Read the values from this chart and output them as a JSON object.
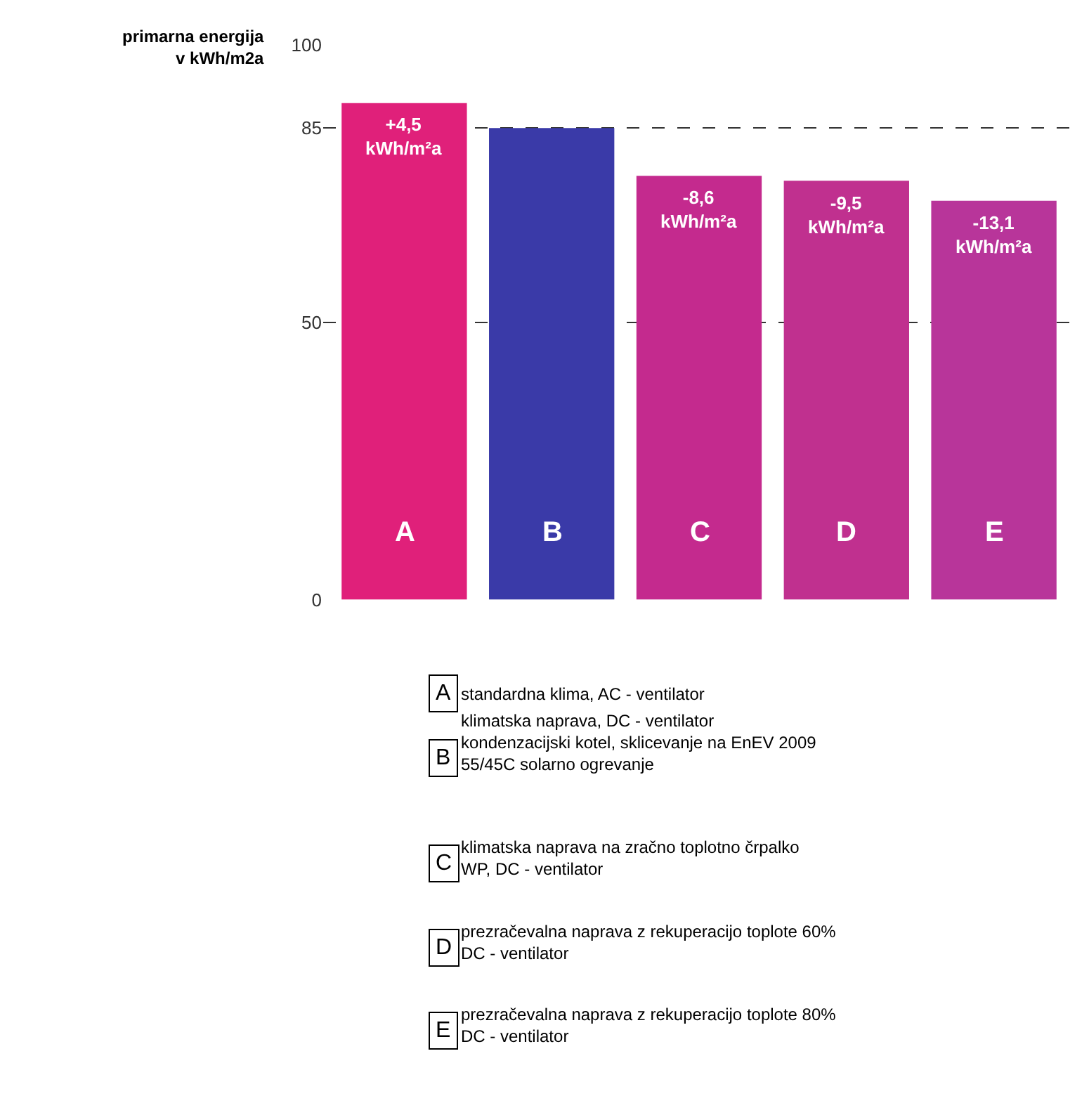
{
  "chart_data": {
    "type": "bar",
    "ylabel": "primarna energija\nv kWh/m2a",
    "categories": [
      "A",
      "B",
      "C",
      "D",
      "E"
    ],
    "values": [
      89.5,
      85,
      76.4,
      75.5,
      71.9
    ],
    "colors": [
      "#e0207a",
      "#3a3aa8",
      "#c42a8e",
      "#c0308f",
      "#b8359a"
    ],
    "ylim": [
      0,
      100
    ],
    "yticks": [
      0,
      50,
      85,
      100
    ],
    "grid": "y",
    "annotations": [
      {
        "text": "+4,5 kWh/m²a",
        "x": "A",
        "y": 89.5
      },
      {
        "text": "-8,6 kWh/m²a",
        "x": "C",
        "y": 76.4
      },
      {
        "text": "-9,5 kWh/m²a",
        "x": "D",
        "y": 75.5
      },
      {
        "text": "-13,1 kWh/m²a",
        "x": "E",
        "y": 71.9
      },
      "standardna klima, AC - ventilator",
      "klimatska naprava, DC - ventilator\nkondenzacijski kotel, sklicevanje na EnEV 2009\n55/45C solarno ogrevanje",
      "klimatska naprava na zračno toplotno črpalko\nWP, DC - ventilator",
      "prezračevalna naprava z rekuperacijo toplote 60%\nDC - ventilator",
      "prezračevalna naprava z rekuperacijo toplote 80%\nDC - ventilator"
    ]
  }
}
